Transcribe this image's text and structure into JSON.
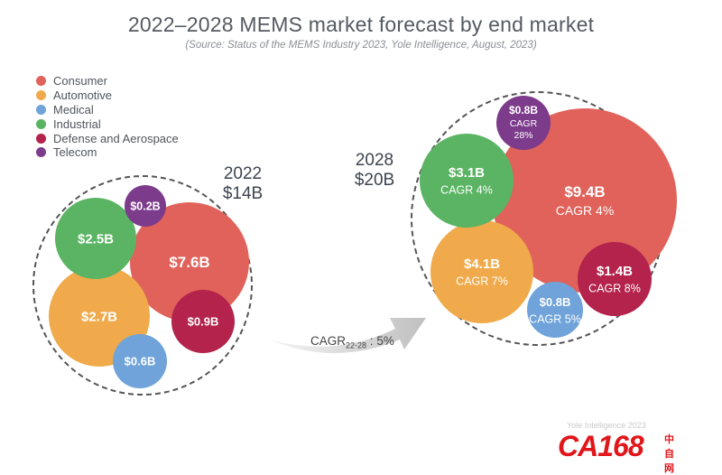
{
  "chart_data": {
    "type": "bubble",
    "title": "2022–2028 MEMS market forecast by end market",
    "subtitle": "(Source: Status of the MEMS Industry 2023, Yole Intelligence, August, 2023)",
    "legend": [
      {
        "name": "Consumer",
        "color": "#e0625a"
      },
      {
        "name": "Automotive",
        "color": "#f0aa4b"
      },
      {
        "name": "Medical",
        "color": "#6fa3d9"
      },
      {
        "name": "Industrial",
        "color": "#5ab463"
      },
      {
        "name": "Defense and Aerospace",
        "color": "#b3234b"
      },
      {
        "name": "Telecom",
        "color": "#7d3b8c"
      }
    ],
    "years": [
      {
        "year": "2022",
        "total": "$14B",
        "segments": [
          {
            "segment": "Consumer",
            "value": 7.6,
            "label": "$7.6B",
            "cagr": ""
          },
          {
            "segment": "Automotive",
            "value": 2.7,
            "label": "$2.7B",
            "cagr": ""
          },
          {
            "segment": "Industrial",
            "value": 2.5,
            "label": "$2.5B",
            "cagr": ""
          },
          {
            "segment": "Defense and Aerospace",
            "value": 0.9,
            "label": "$0.9B",
            "cagr": ""
          },
          {
            "segment": "Medical",
            "value": 0.6,
            "label": "$0.6B",
            "cagr": ""
          },
          {
            "segment": "Telecom",
            "value": 0.2,
            "label": "$0.2B",
            "cagr": ""
          }
        ]
      },
      {
        "year": "2028",
        "total": "$20B",
        "segments": [
          {
            "segment": "Consumer",
            "value": 9.4,
            "label": "$9.4B",
            "cagr": "CAGR 4%"
          },
          {
            "segment": "Automotive",
            "value": 4.1,
            "label": "$4.1B",
            "cagr": "CAGR 7%"
          },
          {
            "segment": "Industrial",
            "value": 3.1,
            "label": "$3.1B",
            "cagr": "CAGR 4%"
          },
          {
            "segment": "Defense and Aerospace",
            "value": 1.4,
            "label": "$1.4B",
            "cagr": "CAGR 8%"
          },
          {
            "segment": "Medical",
            "value": 0.8,
            "label": "$0.8B",
            "cagr": "CAGR 5%"
          },
          {
            "segment": "Telecom",
            "value": 0.8,
            "label": "$0.8B",
            "cagr": "CAGR 28%"
          }
        ]
      }
    ],
    "overall_cagr": {
      "label": "CAGR",
      "sub": "22-28",
      "value": "5%"
    }
  },
  "watermark": {
    "text": "Yole Intelligence 2023",
    "logo": "CA168",
    "logo_cn": "中自网"
  }
}
